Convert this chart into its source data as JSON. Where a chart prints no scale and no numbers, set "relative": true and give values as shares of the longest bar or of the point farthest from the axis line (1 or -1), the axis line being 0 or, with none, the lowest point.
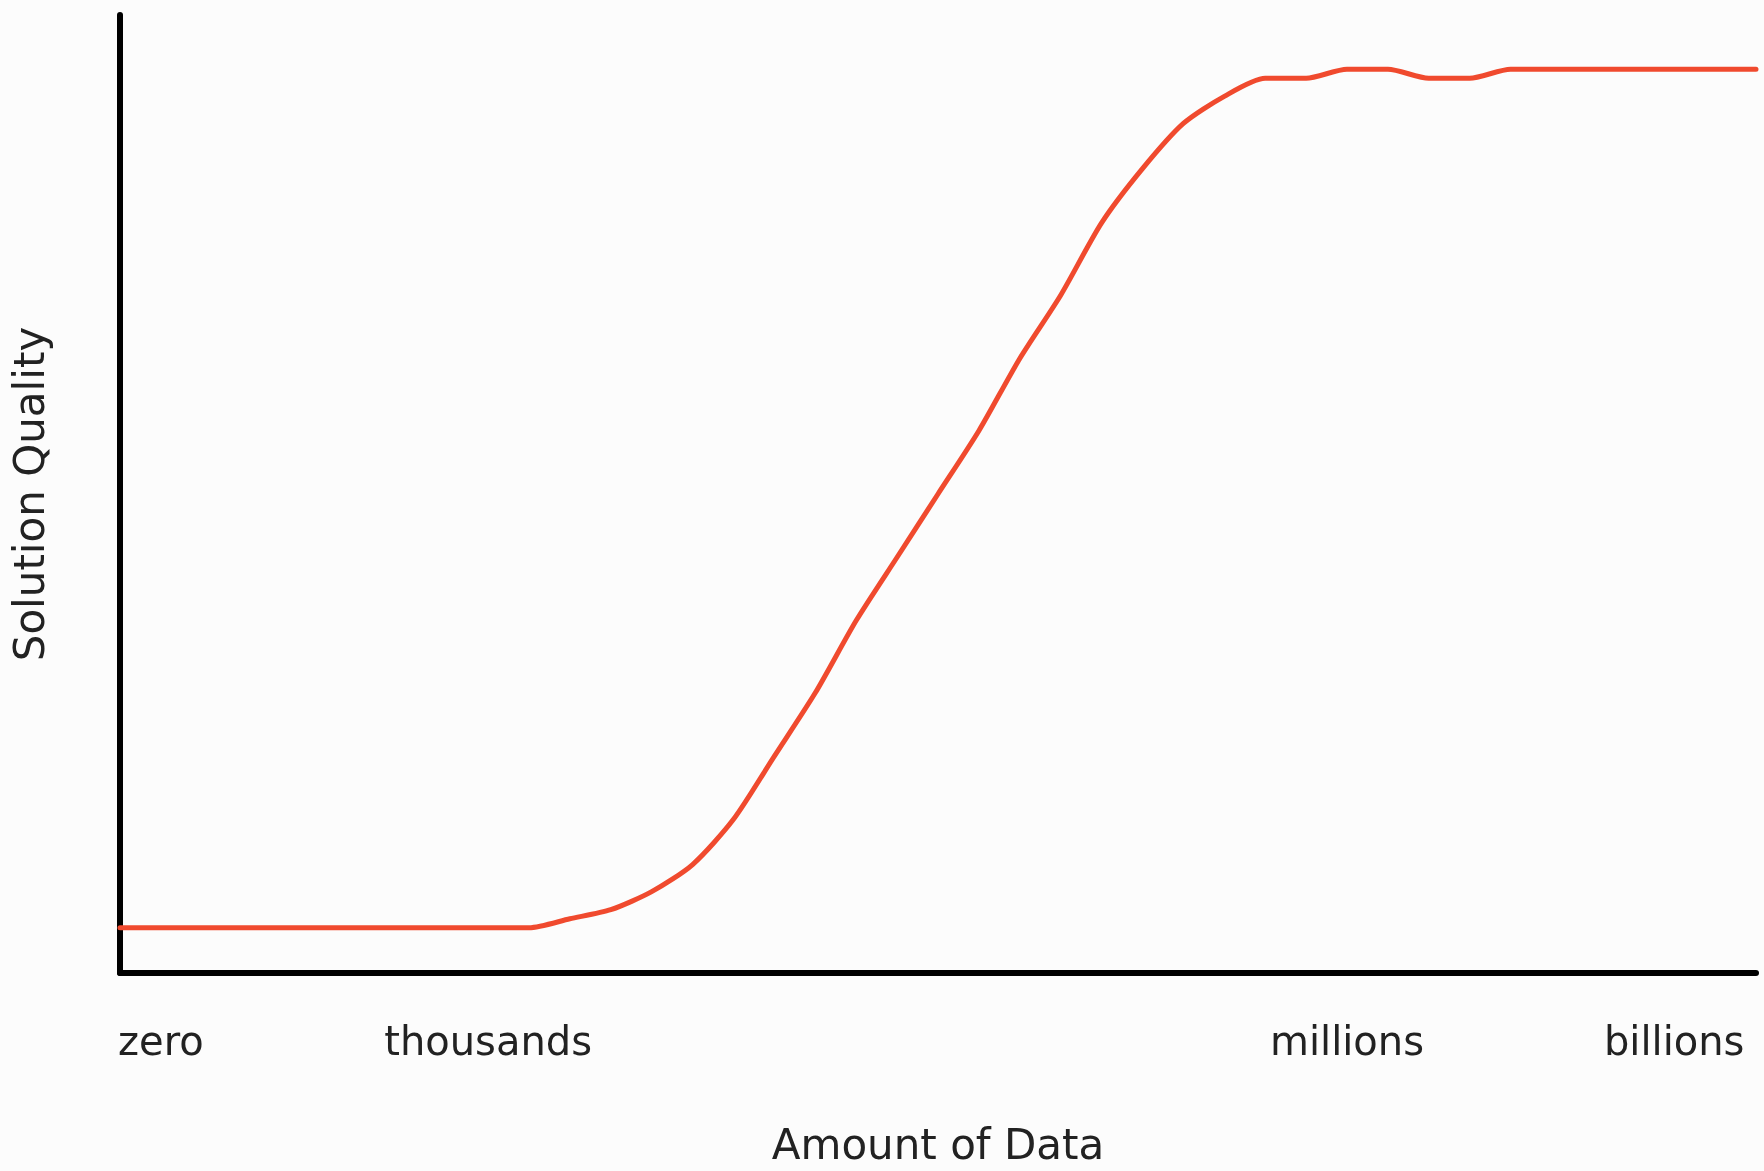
{
  "chart_data": {
    "type": "line",
    "relative": true,
    "xlabel": "Amount of Data",
    "ylabel": "Solution Quality",
    "categories": [
      null,
      "zero",
      null,
      null,
      null,
      null,
      null,
      null,
      null,
      "thousands",
      null,
      null,
      null,
      null,
      null,
      null,
      null,
      null,
      null,
      null,
      null,
      null,
      null,
      null,
      null,
      null,
      null,
      null,
      null,
      null,
      "millions",
      null,
      null,
      null,
      null,
      null,
      null,
      null,
      "billions",
      null,
      null
    ],
    "series": [
      {
        "color": "#f04a2e",
        "values": [
          0.05,
          0.05,
          0.05,
          0.05,
          0.05,
          0.05,
          0.05,
          0.05,
          0.05,
          0.05,
          0.05,
          0.06,
          0.07,
          0.09,
          0.12,
          0.17,
          0.24,
          0.31,
          0.39,
          0.46,
          0.53,
          0.6,
          0.68,
          0.75,
          0.83,
          0.89,
          0.94,
          0.97,
          0.99,
          0.99,
          1,
          1,
          0.99,
          0.99,
          1,
          1,
          1,
          1,
          1,
          1,
          1
        ]
      }
    ],
    "marker": "none",
    "grid": false
  }
}
